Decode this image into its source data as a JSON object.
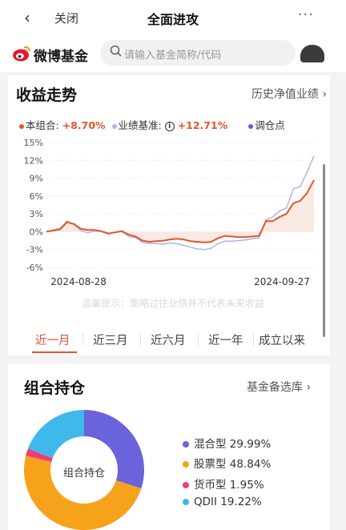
{
  "topbar": {
    "back_icon": "chevron-left-icon",
    "close_label": "关闭",
    "title": "全面进攻",
    "more_icon": "more-dots-icon"
  },
  "brand": {
    "name": "微博基金",
    "search_placeholder": "请输入基金简称/代码"
  },
  "returns": {
    "title": "收益走势",
    "link": "历史净值业绩",
    "legend": {
      "portfolio_label": "本组合:",
      "portfolio_value": "+8.70%",
      "benchmark_label": "业绩基准:",
      "benchmark_value": "+12.71%",
      "rebalance_label": "调仓点"
    },
    "disclaimer": "温馨提示：策略过往业绩并不代表未来收益",
    "tabs": [
      "近一月",
      "近三月",
      "近六月",
      "近一年",
      "成立以来"
    ],
    "active_tab": 0
  },
  "colors": {
    "accent": "#e4552b",
    "benchmark": "#aab6e6",
    "rebalance": "#5b5fe0",
    "mixed": "#6a63dc",
    "stock": "#f7a21b",
    "money": "#ec3f76",
    "qdii": "#3fb8ec"
  },
  "chart_data": {
    "type": "line",
    "x_tick_labels": [
      "2024-08-28",
      "2024-09-27"
    ],
    "y_tick_labels": [
      "15%",
      "12%",
      "9%",
      "6%",
      "3%",
      "0%",
      "-3%",
      "-6%"
    ],
    "ylim": [
      -6,
      15
    ],
    "grid": true,
    "series": [
      {
        "name": "本组合",
        "values": [
          0,
          0.2,
          0.4,
          1.6,
          1.3,
          0.5,
          0.3,
          0.3,
          0.1,
          -0.3,
          -0.1,
          0.1,
          -0.5,
          -0.8,
          -1.5,
          -1.7,
          -1.6,
          -1.5,
          -1.3,
          -1.2,
          -1.3,
          -1.6,
          -1.7,
          -1.8,
          -1.7,
          -1.1,
          -0.7,
          -0.8,
          -0.9,
          -0.9,
          -0.8,
          -0.7,
          1.8,
          1.8,
          2.5,
          3.0,
          4.8,
          5.2,
          6.5,
          8.7
        ]
      },
      {
        "name": "业绩基准",
        "values": [
          0,
          0.3,
          0.6,
          1.8,
          1.2,
          0.2,
          -0.2,
          0.1,
          0.0,
          -0.4,
          -0.1,
          0.0,
          -0.8,
          -1.0,
          -1.8,
          -2.0,
          -2.0,
          -2.1,
          -1.9,
          -2.0,
          -2.3,
          -2.6,
          -2.9,
          -3.0,
          -2.8,
          -2.0,
          -1.6,
          -1.6,
          -1.5,
          -1.4,
          -1.2,
          -1.0,
          2.0,
          2.5,
          3.5,
          4.0,
          7.2,
          7.6,
          10.0,
          12.71
        ]
      }
    ]
  },
  "holdings": {
    "title": "组合持仓",
    "link": "基金备选库",
    "center_label": "组合持仓",
    "items": [
      {
        "label": "混合型",
        "pct": "29.99%",
        "value": 29.99
      },
      {
        "label": "股票型",
        "pct": "48.84%",
        "value": 48.84
      },
      {
        "label": "货币型",
        "pct": "1.95%",
        "value": 1.95
      },
      {
        "label": "QDII",
        "pct": "19.22%",
        "value": 19.22
      }
    ]
  }
}
